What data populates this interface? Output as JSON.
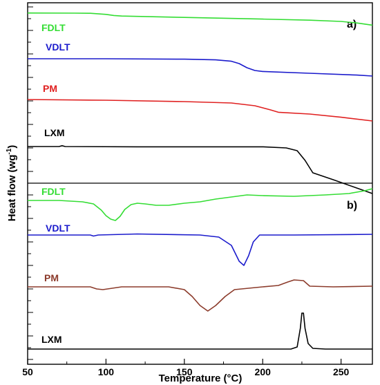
{
  "chart_data": {
    "type": "line",
    "xlabel": "Temperature (°C)",
    "ylabel_prefix": "Heat flow (wg",
    "ylabel_sup": "-1",
    "ylabel_suffix": ")",
    "xlim": [
      50,
      270
    ],
    "xticks": [
      {
        "value": 50,
        "label": "50"
      },
      {
        "value": 100,
        "label": "100"
      },
      {
        "value": 150,
        "label": "150"
      },
      {
        "value": 200,
        "label": "200"
      },
      {
        "value": 250,
        "label": "250"
      }
    ],
    "panels": [
      {
        "tag": "a)",
        "series": [
          {
            "name": "FDLT",
            "color": "#33dd33",
            "points": [
              [
                50,
                0.4
              ],
              [
                80,
                0.5
              ],
              [
                90,
                0.6
              ],
              [
                100,
                1.4
              ],
              [
                105,
                2.2
              ],
              [
                110,
                2.6
              ],
              [
                150,
                3.6
              ],
              [
                200,
                4.8
              ],
              [
                230,
                5.6
              ],
              [
                250,
                6.5
              ],
              [
                260,
                7.6
              ],
              [
                270,
                9.2
              ]
            ]
          },
          {
            "name": "VDLT",
            "color": "#1a1acc",
            "points": [
              [
                50,
                0
              ],
              [
                100,
                0
              ],
              [
                150,
                0.3
              ],
              [
                170,
                0.8
              ],
              [
                180,
                1.8
              ],
              [
                185,
                3.5
              ],
              [
                190,
                6.5
              ],
              [
                195,
                8.5
              ],
              [
                200,
                9.2
              ],
              [
                230,
                10.5
              ],
              [
                260,
                11.8
              ],
              [
                270,
                12.5
              ]
            ]
          },
          {
            "name": "PM",
            "color": "#e02020",
            "points": [
              [
                50,
                0
              ],
              [
                100,
                0.5
              ],
              [
                150,
                1.5
              ],
              [
                180,
                2.5
              ],
              [
                195,
                4.5
              ],
              [
                205,
                7.5
              ],
              [
                210,
                9.2
              ],
              [
                230,
                10.5
              ],
              [
                250,
                12.8
              ],
              [
                270,
                15.5
              ]
            ]
          },
          {
            "name": "LXM",
            "color": "#000000",
            "points": [
              [
                50,
                0
              ],
              [
                70,
                0
              ],
              [
                72,
                -0.6
              ],
              [
                74,
                0
              ],
              [
                120,
                0.2
              ],
              [
                200,
                0.2
              ],
              [
                215,
                1
              ],
              [
                222,
                3
              ],
              [
                227,
                10
              ],
              [
                232,
                19
              ],
              [
                245,
                24
              ],
              [
                260,
                30
              ],
              [
                270,
                34
              ]
            ]
          }
        ]
      },
      {
        "tag": "b)",
        "series": [
          {
            "name": "FDLT",
            "color": "#33dd33",
            "points": [
              [
                50,
                0
              ],
              [
                70,
                0
              ],
              [
                85,
                -2
              ],
              [
                92,
                -5
              ],
              [
                97,
                -14
              ],
              [
                100,
                -22
              ],
              [
                103,
                -27
              ],
              [
                106,
                -29
              ],
              [
                109,
                -23
              ],
              [
                112,
                -13
              ],
              [
                116,
                -6
              ],
              [
                120,
                -4
              ],
              [
                125,
                -5
              ],
              [
                132,
                -7
              ],
              [
                140,
                -7
              ],
              [
                150,
                -4
              ],
              [
                160,
                -2
              ],
              [
                170,
                2
              ],
              [
                180,
                5
              ],
              [
                190,
                8
              ],
              [
                200,
                7
              ],
              [
                220,
                6
              ],
              [
                240,
                8
              ],
              [
                255,
                10
              ],
              [
                265,
                14
              ],
              [
                270,
                17
              ]
            ]
          },
          {
            "name": "VDLT",
            "color": "#1a1acc",
            "points": [
              [
                50,
                0
              ],
              [
                90,
                0
              ],
              [
                92,
                -1.5
              ],
              [
                95,
                0
              ],
              [
                120,
                1.5
              ],
              [
                160,
                0
              ],
              [
                172,
                -3
              ],
              [
                180,
                -15
              ],
              [
                185,
                -38
              ],
              [
                188,
                -44
              ],
              [
                191,
                -30
              ],
              [
                194,
                -10
              ],
              [
                198,
                0
              ],
              [
                220,
                0
              ],
              [
                270,
                1
              ]
            ]
          },
          {
            "name": "PM",
            "color": "#8b3a2a",
            "points": [
              [
                50,
                0
              ],
              [
                90,
                0
              ],
              [
                94,
                -3
              ],
              [
                98,
                -4
              ],
              [
                110,
                0
              ],
              [
                140,
                0
              ],
              [
                150,
                -4
              ],
              [
                155,
                -14
              ],
              [
                160,
                -27
              ],
              [
                165,
                -35
              ],
              [
                170,
                -27
              ],
              [
                176,
                -14
              ],
              [
                182,
                -4
              ],
              [
                200,
                0
              ],
              [
                210,
                2
              ],
              [
                216,
                7
              ],
              [
                220,
                10
              ],
              [
                226,
                9
              ],
              [
                230,
                1
              ],
              [
                245,
                0
              ],
              [
                270,
                1
              ]
            ]
          },
          {
            "name": "LXM",
            "color": "#000000",
            "points": [
              [
                50,
                0
              ],
              [
                200,
                0
              ],
              [
                218,
                0
              ],
              [
                222,
                3
              ],
              [
                224,
                30
              ],
              [
                225,
                52
              ],
              [
                226,
                52
              ],
              [
                227,
                30
              ],
              [
                229,
                8
              ],
              [
                232,
                1
              ],
              [
                240,
                0
              ],
              [
                260,
                0
              ],
              [
                270,
                0
              ]
            ]
          }
        ]
      }
    ]
  }
}
